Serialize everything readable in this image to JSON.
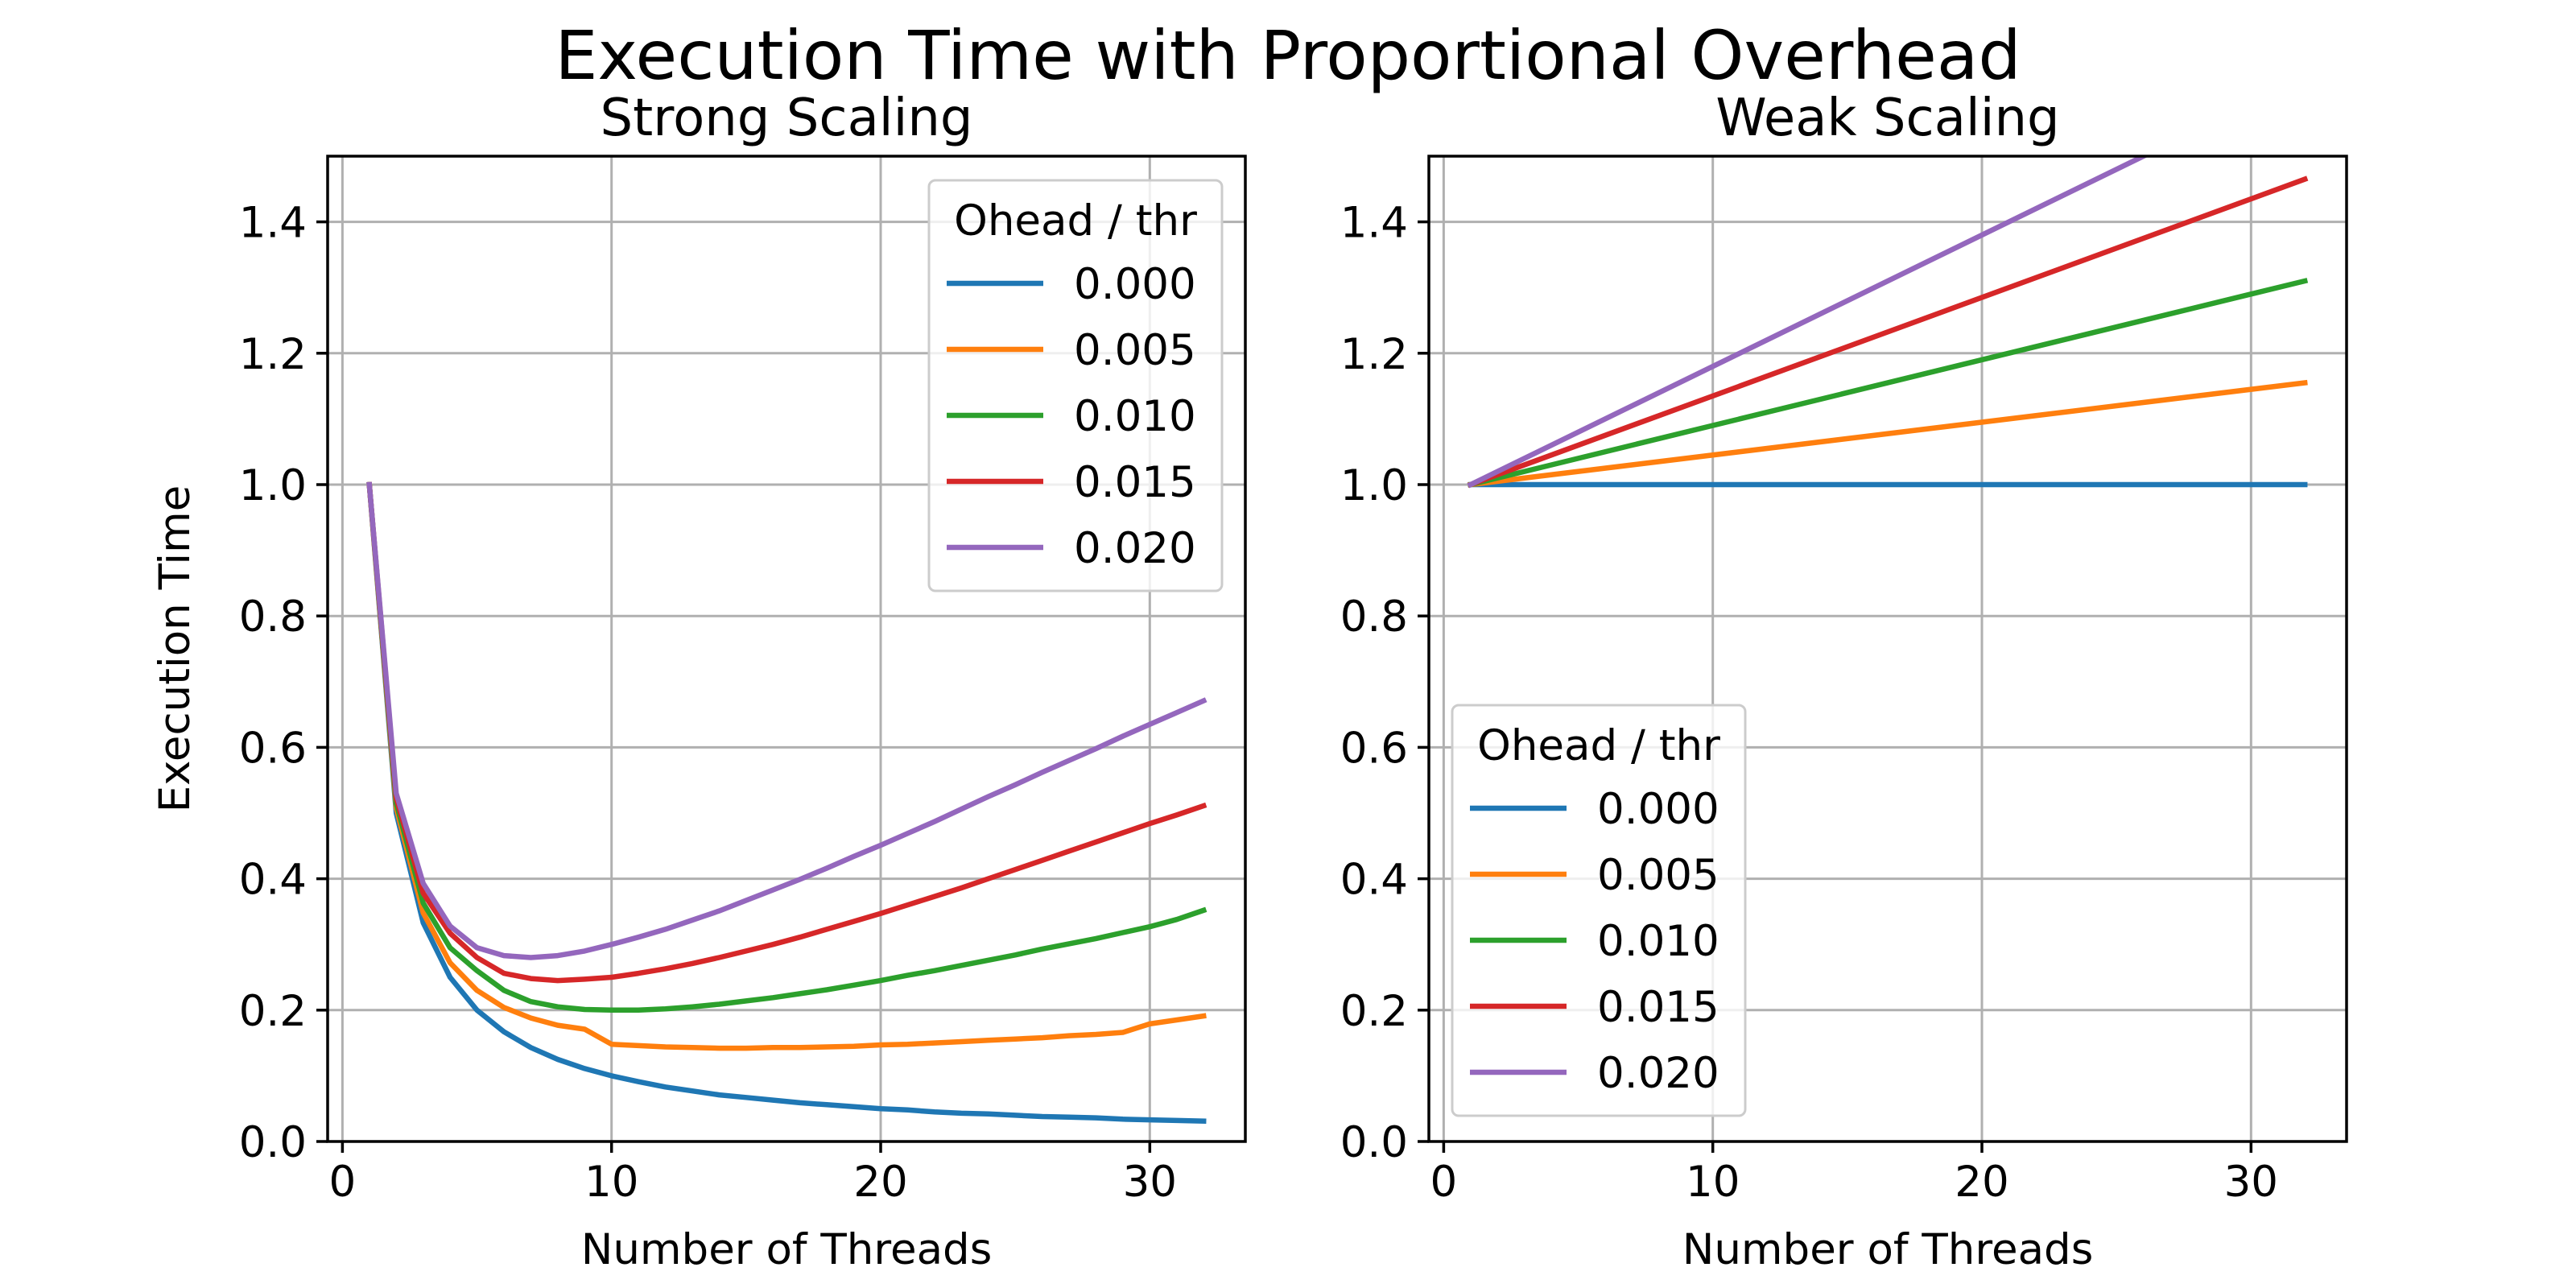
{
  "figure": {
    "title": "Execution Time with Proportional Overhead"
  },
  "colors": {
    "0.000": "#1f77b4",
    "0.005": "#ff7f0e",
    "0.010": "#2ca02c",
    "0.015": "#d62728",
    "0.020": "#9467bd",
    "grid": "#b0b0b0"
  },
  "chart_data": [
    {
      "type": "line",
      "title": "Strong Scaling",
      "xlabel": "Number of Threads",
      "ylabel": "Execution Time",
      "xlim": [
        -0.55,
        33.55
      ],
      "ylim": [
        0,
        1.5
      ],
      "xticks": [
        0,
        10,
        20,
        30
      ],
      "xtick_labels": [
        "0",
        "10",
        "20",
        "30"
      ],
      "yticks": [
        0,
        0.2,
        0.4,
        0.6,
        0.8,
        1.0,
        1.2,
        1.4
      ],
      "ytick_labels": [
        "0.0",
        "0.2",
        "0.4",
        "0.6",
        "0.8",
        "1.0",
        "1.2",
        "1.4"
      ],
      "grid": true,
      "legend": {
        "title": "Ohead / thr",
        "placement": "upper right"
      },
      "x": [
        1,
        2,
        3,
        4,
        5,
        6,
        7,
        8,
        9,
        10,
        11,
        12,
        13,
        14,
        15,
        16,
        17,
        18,
        19,
        20,
        21,
        22,
        23,
        24,
        25,
        26,
        27,
        28,
        29,
        30,
        31,
        32
      ],
      "series": [
        {
          "name": "0.000",
          "values": [
            1.0,
            0.5,
            0.333,
            0.25,
            0.2,
            0.167,
            0.143,
            0.125,
            0.111,
            0.1,
            0.091,
            0.083,
            0.077,
            0.071,
            0.067,
            0.063,
            0.059,
            0.056,
            0.053,
            0.05,
            0.048,
            0.045,
            0.043,
            0.042,
            0.04,
            0.038,
            0.037,
            0.036,
            0.034,
            0.033,
            0.032,
            0.031
          ]
        },
        {
          "name": "0.005",
          "values": [
            1.0,
            0.508,
            0.348,
            0.272,
            0.23,
            0.204,
            0.188,
            0.177,
            0.171,
            0.148,
            0.146,
            0.144,
            0.143,
            0.142,
            0.142,
            0.143,
            0.143,
            0.144,
            0.145,
            0.147,
            0.148,
            0.15,
            0.152,
            0.154,
            0.156,
            0.158,
            0.161,
            0.163,
            0.166,
            0.179,
            0.185,
            0.191
          ]
        },
        {
          "name": "0.010",
          "values": [
            1.0,
            0.515,
            0.363,
            0.295,
            0.26,
            0.23,
            0.213,
            0.205,
            0.201,
            0.2,
            0.2,
            0.202,
            0.205,
            0.209,
            0.214,
            0.219,
            0.225,
            0.231,
            0.238,
            0.245,
            0.253,
            0.26,
            0.268,
            0.276,
            0.284,
            0.293,
            0.301,
            0.309,
            0.318,
            0.327,
            0.338,
            0.352
          ]
        },
        {
          "name": "0.015",
          "values": [
            1.0,
            0.523,
            0.378,
            0.317,
            0.28,
            0.256,
            0.248,
            0.245,
            0.247,
            0.25,
            0.256,
            0.263,
            0.271,
            0.28,
            0.29,
            0.3,
            0.311,
            0.323,
            0.335,
            0.347,
            0.36,
            0.373,
            0.386,
            0.4,
            0.414,
            0.428,
            0.442,
            0.456,
            0.47,
            0.484,
            0.497,
            0.511
          ]
        },
        {
          "name": "0.020",
          "values": [
            1.0,
            0.53,
            0.393,
            0.328,
            0.295,
            0.283,
            0.28,
            0.283,
            0.29,
            0.3,
            0.311,
            0.323,
            0.337,
            0.351,
            0.367,
            0.383,
            0.399,
            0.416,
            0.434,
            0.451,
            0.469,
            0.487,
            0.506,
            0.525,
            0.543,
            0.562,
            0.58,
            0.598,
            0.617,
            0.635,
            0.653,
            0.671
          ]
        }
      ]
    },
    {
      "type": "line",
      "title": "Weak Scaling",
      "xlabel": "Number of Threads",
      "ylabel": "",
      "xlim": [
        -0.55,
        33.55
      ],
      "ylim": [
        0,
        1.5
      ],
      "xticks": [
        0,
        10,
        20,
        30
      ],
      "xtick_labels": [
        "0",
        "10",
        "20",
        "30"
      ],
      "yticks": [
        0,
        0.2,
        0.4,
        0.6,
        0.8,
        1.0,
        1.2,
        1.4
      ],
      "ytick_labels": [
        "0.0",
        "0.2",
        "0.4",
        "0.6",
        "0.8",
        "1.0",
        "1.2",
        "1.4"
      ],
      "grid": true,
      "legend": {
        "title": "Ohead / thr",
        "placement": "lower left"
      },
      "x": [
        1,
        32
      ],
      "series": [
        {
          "name": "0.000",
          "values": [
            1.0,
            1.0
          ]
        },
        {
          "name": "0.005",
          "values": [
            1.0,
            1.155
          ]
        },
        {
          "name": "0.010",
          "values": [
            1.0,
            1.31
          ]
        },
        {
          "name": "0.015",
          "values": [
            1.0,
            1.465
          ]
        },
        {
          "name": "0.020",
          "values": [
            1.0,
            1.62
          ]
        }
      ]
    }
  ]
}
